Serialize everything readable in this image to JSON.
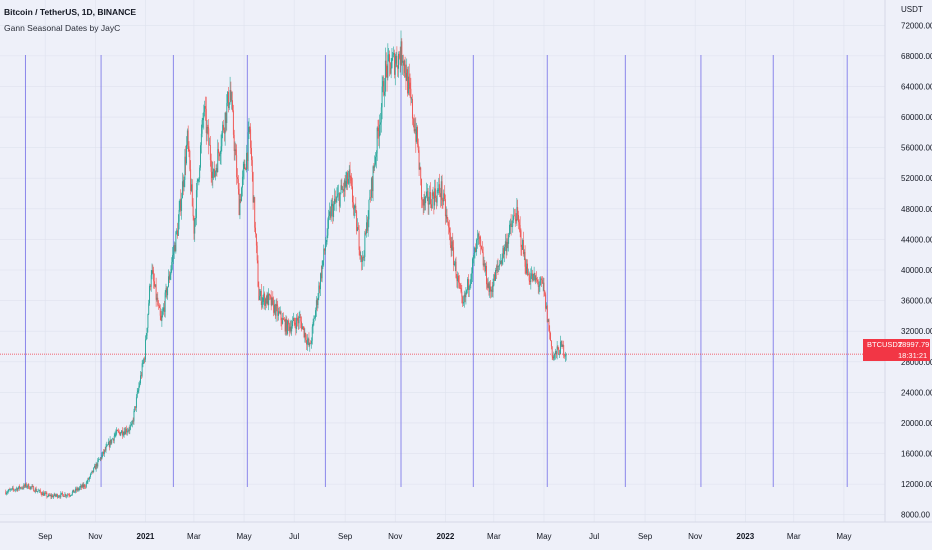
{
  "header": {
    "title": "Bitcoin / TetherUS, 1D, BINANCE",
    "indicator": "Gann Seasonal Dates by JayC"
  },
  "price_scale": {
    "unit": "USDT",
    "last_symbol": "BTCUSDT",
    "last_price": "28997.79",
    "countdown": "18:31:21"
  },
  "colors": {
    "background": "#eef0f9",
    "grid": "#dfe2ee",
    "seasonal_line": "#6a64e6",
    "up": "#26a69a",
    "down": "#ef5350",
    "last_price": "#f23645"
  },
  "chart_data": {
    "type": "candlestick",
    "symbol": "BTCUSDT",
    "timeframe": "1D",
    "ylim": [
      6000,
      74000
    ],
    "y_ticks": [
      "8000.00",
      "12000.00",
      "16000.00",
      "20000.00",
      "24000.00",
      "28000.00",
      "32000.00",
      "36000.00",
      "40000.00",
      "44000.00",
      "48000.00",
      "52000.00",
      "56000.00",
      "60000.00",
      "64000.00",
      "68000.00",
      "72000.00"
    ],
    "x_ticks": [
      "Sep",
      "Nov",
      "2021",
      "Mar",
      "May",
      "Jul",
      "Sep",
      "Nov",
      "2022",
      "Mar",
      "May",
      "Jul",
      "Sep",
      "Nov",
      "2023",
      "Mar",
      "May"
    ],
    "x_tick_dates": [
      "2020-09",
      "2020-11",
      "2021-01",
      "2021-03",
      "2021-05",
      "2021-07",
      "2021-09",
      "2021-11",
      "2022-01",
      "2022-03",
      "2022-05",
      "2022-07",
      "2022-09",
      "2022-11",
      "2023-01",
      "2023-03",
      "2023-05"
    ],
    "seasonal_lines": [
      "2020-08-08",
      "2020-11-08",
      "2021-02-04",
      "2021-05-05",
      "2021-08-08",
      "2021-11-08",
      "2022-02-04",
      "2022-05-05",
      "2022-08-08",
      "2022-11-08",
      "2023-02-04",
      "2023-05-05"
    ],
    "last_price": 28997.79,
    "price_path": [
      [
        "2020-07-15",
        11000
      ],
      [
        "2020-08-10",
        11800
      ],
      [
        "2020-09-05",
        10400
      ],
      [
        "2020-10-01",
        10700
      ],
      [
        "2020-10-20",
        11900
      ],
      [
        "2020-11-05",
        15000
      ],
      [
        "2020-11-25",
        18500
      ],
      [
        "2020-12-15",
        19400
      ],
      [
        "2020-12-31",
        28900
      ],
      [
        "2021-01-08",
        40000
      ],
      [
        "2021-01-20",
        33000
      ],
      [
        "2021-02-10",
        46000
      ],
      [
        "2021-02-21",
        57000
      ],
      [
        "2021-03-01",
        45500
      ],
      [
        "2021-03-13",
        61000
      ],
      [
        "2021-03-25",
        52000
      ],
      [
        "2021-04-14",
        63500
      ],
      [
        "2021-04-25",
        48500
      ],
      [
        "2021-05-08",
        58000
      ],
      [
        "2021-05-19",
        36500
      ],
      [
        "2021-06-01",
        36000
      ],
      [
        "2021-06-22",
        32500
      ],
      [
        "2021-07-08",
        33500
      ],
      [
        "2021-07-20",
        29800
      ],
      [
        "2021-08-14",
        47500
      ],
      [
        "2021-09-06",
        52000
      ],
      [
        "2021-09-22",
        41000
      ],
      [
        "2021-10-20",
        66000
      ],
      [
        "2021-11-10",
        68500
      ],
      [
        "2021-11-28",
        56500
      ],
      [
        "2021-12-04",
        48500
      ],
      [
        "2021-12-27",
        50500
      ],
      [
        "2022-01-22",
        35000
      ],
      [
        "2022-02-10",
        44000
      ],
      [
        "2022-02-24",
        37000
      ],
      [
        "2022-03-28",
        47500
      ],
      [
        "2022-04-11",
        39500
      ],
      [
        "2022-04-30",
        37700
      ],
      [
        "2022-05-12",
        28500
      ],
      [
        "2022-05-22",
        30000
      ],
      [
        "2022-05-28",
        28997.79
      ]
    ]
  }
}
